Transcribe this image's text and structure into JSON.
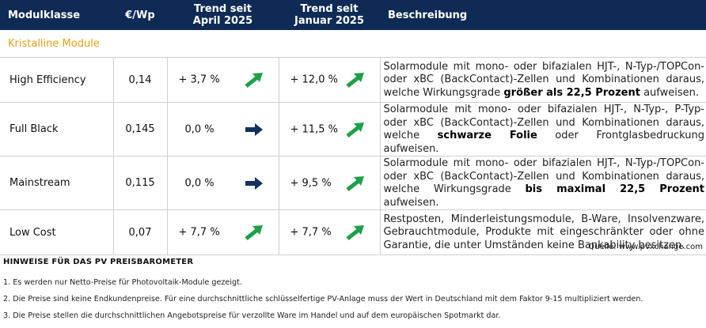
{
  "header": {
    "col1": "Modulklasse",
    "col2": "€/Wp",
    "col3_line1": "Trend seit",
    "col3_line2": "April 2025",
    "col4_line1": "Trend seit",
    "col4_line2": "Januar 2025",
    "col5": "Beschreibung"
  },
  "section_title": "Kristalline Module",
  "rows": [
    {
      "name": "High Efficiency",
      "price": "0,14",
      "trend_april": "+ 3,7 %",
      "trend_april_icon": "arrow-up-right-icon",
      "trend_januar": "+ 12,0 %",
      "trend_januar_icon": "arrow-up-right-icon",
      "desc_pre": "Solarmodule mit mono- oder bifazialen HJT-, N-Typ-/TOPCon- oder xBC (BackContact)-Zellen und Kombinationen daraus, welche Wirkungsgrade ",
      "desc_bold": "größer als 22,5 Prozent",
      "desc_post": " aufweisen."
    },
    {
      "name": "Full Black",
      "price": "0,145",
      "trend_april": "0,0 %",
      "trend_april_icon": "arrow-right-icon",
      "trend_januar": "+ 11,5 %",
      "trend_januar_icon": "arrow-up-right-icon",
      "desc_pre": "Solarmodule mit mono- oder bifazialen HJT-, N-Typ-, P-Typ- oder xBC (BackContact)-Zellen und Kombinationen daraus, welche ",
      "desc_bold": "schwarze Folie",
      "desc_post": " oder Frontglasbedruckung aufweisen."
    },
    {
      "name": "Mainstream",
      "price": "0,115",
      "trend_april": "0,0 %",
      "trend_april_icon": "arrow-right-icon",
      "trend_januar": "+ 9,5 %",
      "trend_januar_icon": "arrow-up-right-icon",
      "desc_pre": "Solarmodule mit mono- oder bifazialen HJT-, N-Typ-/TOPCon- oder xBC (BackContact)-Zellen und Kombinationen daraus, welche Wirkungsgrade ",
      "desc_bold": "bis maximal 22,5 Prozent",
      "desc_post": " aufweisen."
    },
    {
      "name": "Low Cost",
      "price": "0,07",
      "trend_april": "+ 7,7 %",
      "trend_april_icon": "arrow-up-right-icon",
      "trend_januar": "+ 7,7 %",
      "trend_januar_icon": "arrow-up-right-icon",
      "desc_pre": "Restposten, Minderleistungsmodule, B-Ware, Insolvenzware, Gebrauchtmodule, Produkte mit eingeschränkter oder ohne Garantie, die unter Umständen keine Bankability besitzen.",
      "desc_bold": "",
      "desc_post": ""
    }
  ],
  "source": "Quelle: www.pvxchange.com",
  "notes_title": "HINWEISE FÜR DAS PV PREISBAROMETER",
  "notes": [
    "1. Es werden nur Netto-Preise für Photovoltaik-Module gezeigt.",
    "2. Die Preise sind keine Endkundenpreise. Für eine durchschnittliche schlüsselfertige PV-Anlage muss der Wert in Deutschland mit dem Faktor 9-15 multipliziert werden.",
    "3. Die Preise stellen die durchschnittlichen Angebotspreise für verzollte Ware im Handel und auf dem europäischen Spotmarkt dar."
  ],
  "colors": {
    "header_bg": "#0f2b55",
    "section_title": "#e8a010",
    "arrow_up": "#1fa04a",
    "arrow_right": "#15315f"
  }
}
